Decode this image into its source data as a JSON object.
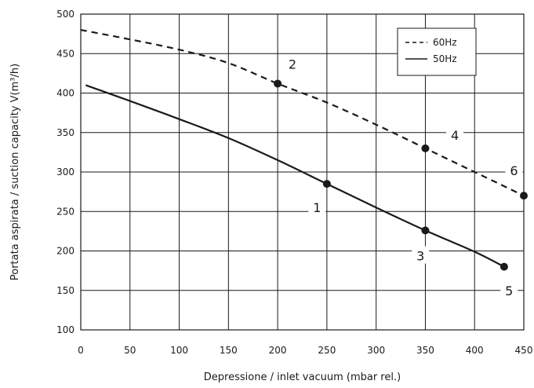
{
  "chart_data": {
    "type": "line",
    "title": "",
    "xlabel": "Depressione / inlet vacuum (mbar rel.)",
    "ylabel": "Portata aspirata / suction capacity V(m³/h)",
    "xlim": [
      0,
      450
    ],
    "ylim": [
      100,
      500
    ],
    "x_ticks": [
      0,
      50,
      100,
      150,
      200,
      250,
      300,
      350,
      400,
      450
    ],
    "y_ticks": [
      100,
      150,
      200,
      250,
      300,
      350,
      400,
      450,
      500
    ],
    "grid": true,
    "legend_position": "top-right",
    "series": [
      {
        "name": "60Hz",
        "style": "dashed",
        "color": "#1a1a1a",
        "x": [
          0,
          50,
          100,
          150,
          200,
          250,
          300,
          350,
          400,
          450
        ],
        "y": [
          480,
          468,
          455,
          438,
          412,
          388,
          360,
          330,
          300,
          270
        ]
      },
      {
        "name": "50Hz",
        "style": "solid",
        "color": "#1a1a1a",
        "x": [
          5,
          50,
          100,
          150,
          200,
          250,
          300,
          350,
          400,
          430
        ],
        "y": [
          410,
          390,
          367,
          343,
          315,
          285,
          255,
          226,
          199,
          180
        ]
      }
    ],
    "markers": [
      {
        "label": "1",
        "x": 250,
        "y": 285
      },
      {
        "label": "2",
        "x": 200,
        "y": 412
      },
      {
        "label": "3",
        "x": 350,
        "y": 226
      },
      {
        "label": "4",
        "x": 350,
        "y": 330
      },
      {
        "label": "5",
        "x": 430,
        "y": 180
      },
      {
        "label": "6",
        "x": 450,
        "y": 270
      }
    ],
    "annotations": [
      {
        "text": "1",
        "x": 240,
        "y": 255
      },
      {
        "text": "2",
        "x": 215,
        "y": 437
      },
      {
        "text": "3",
        "x": 345,
        "y": 194
      },
      {
        "text": "4",
        "x": 380,
        "y": 347
      },
      {
        "text": "5",
        "x": 435,
        "y": 150
      },
      {
        "text": "6",
        "x": 440,
        "y": 302
      }
    ]
  }
}
